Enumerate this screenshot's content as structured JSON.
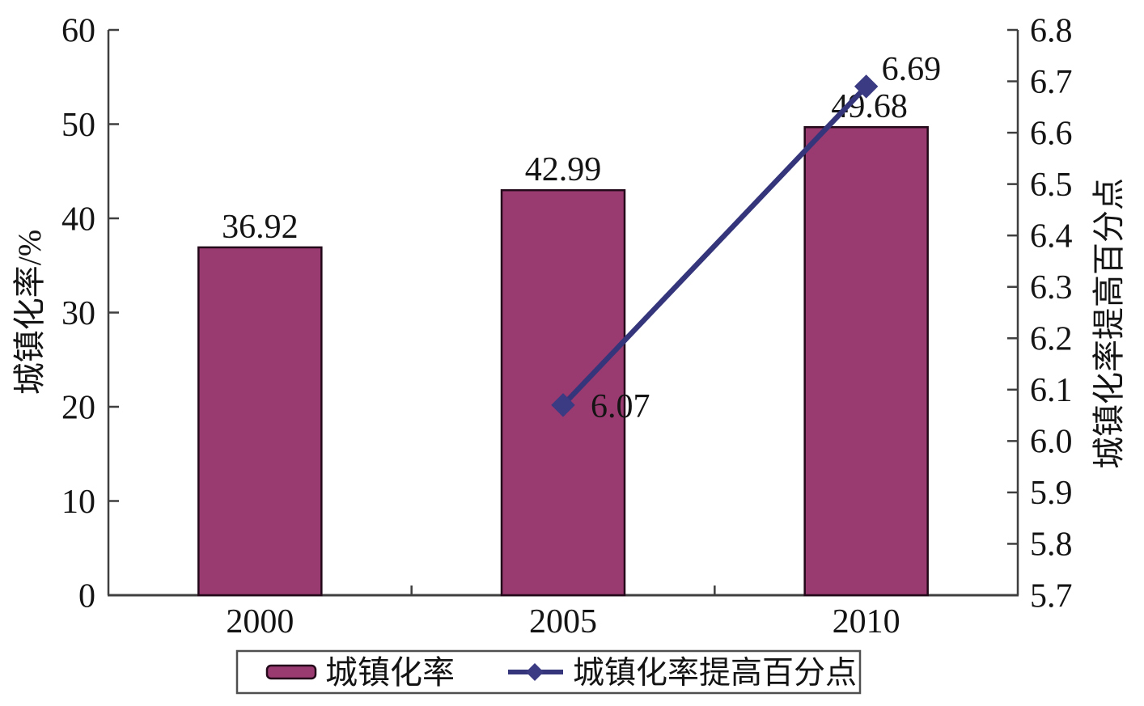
{
  "chart_data": {
    "type": "bar",
    "subtype": "bar+line combo, dual y-axes",
    "title": "",
    "categories": [
      "2000",
      "2005",
      "2010"
    ],
    "series": [
      {
        "name": "城镇化率",
        "type": "bar",
        "axis": "left",
        "values": [
          36.92,
          42.99,
          49.68
        ],
        "data_labels": [
          "36.92",
          "42.99",
          "49.68"
        ]
      },
      {
        "name": "城镇化率提高百分点",
        "type": "line",
        "axis": "right",
        "values": [
          null,
          6.07,
          6.69
        ],
        "data_labels": [
          null,
          "6.07",
          "6.69"
        ]
      }
    ],
    "left_axis": {
      "title": "城镇化率/%",
      "min": 0,
      "max": 60,
      "step": 10,
      "ticks": [
        "0",
        "10",
        "20",
        "30",
        "40",
        "50",
        "60"
      ]
    },
    "right_axis": {
      "title": "城镇化率提高百分点",
      "min": 5.7,
      "max": 6.8,
      "step": 0.1,
      "ticks": [
        "5.7",
        "5.8",
        "5.9",
        "6.0",
        "6.1",
        "6.2",
        "6.3",
        "6.4",
        "6.5",
        "6.6",
        "6.7",
        "6.8"
      ]
    },
    "legend": {
      "position": "bottom",
      "items": [
        {
          "label": "城镇化率",
          "marker": "bar-swatch"
        },
        {
          "label": "城镇化率提高百分点",
          "marker": "line-diamond"
        }
      ]
    },
    "grid": false
  },
  "colors": {
    "bar_fill": "#993a70",
    "bar_border": "#23091a",
    "line": "#34357b",
    "marker_fill": "#3a3b82",
    "axis": "#3f3f3f",
    "text": "#141414",
    "legend_border": "#4f4f4f",
    "background": "#ffffff"
  }
}
